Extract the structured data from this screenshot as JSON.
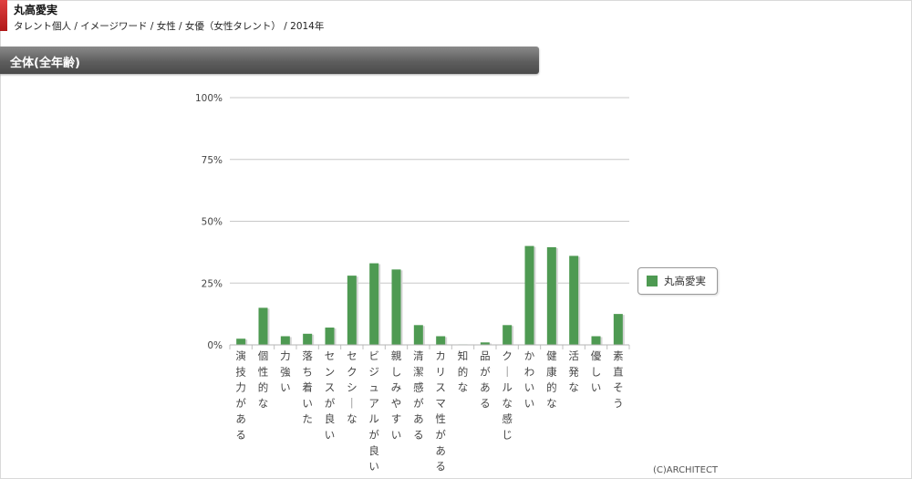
{
  "header": {
    "talent_name": "丸高愛実",
    "breadcrumb": "タレント個人 / イメージワード / 女性 / 女優（女性タレント） / 2014年"
  },
  "section": {
    "title": "全体(全年齢)"
  },
  "footer": {
    "copyright": "(C)ARCHITECT"
  },
  "colors": {
    "bar": "#4e9a52",
    "grid": "#c8c8c8",
    "section_bar": "#5e5e5e",
    "accent": "#cc2222"
  },
  "chart_data": {
    "type": "bar",
    "categories": [
      "演技力がある",
      "個性的な",
      "力強い",
      "落ち着いた",
      "センスが良い",
      "セクシーな",
      "ビジュアルが良い",
      "親しみやすい",
      "清潔感がある",
      "カリスマ性がある",
      "知的な",
      "品がある",
      "クールな感じ",
      "かわいい",
      "健康的な",
      "活発な",
      "優しい",
      "素直そう"
    ],
    "series": [
      {
        "name": "丸高愛実",
        "values": [
          2.5,
          15,
          3.5,
          4.5,
          7,
          28,
          33,
          30.5,
          8,
          3.5,
          0.2,
          1,
          8,
          40,
          39.5,
          36,
          3.5,
          12.5
        ]
      }
    ],
    "ylim": [
      0,
      100
    ],
    "yticks": [
      "0%",
      "25%",
      "50%",
      "75%",
      "100%"
    ],
    "ytick_values": [
      0,
      25,
      50,
      75,
      100
    ],
    "grid": true,
    "legend": "right"
  }
}
